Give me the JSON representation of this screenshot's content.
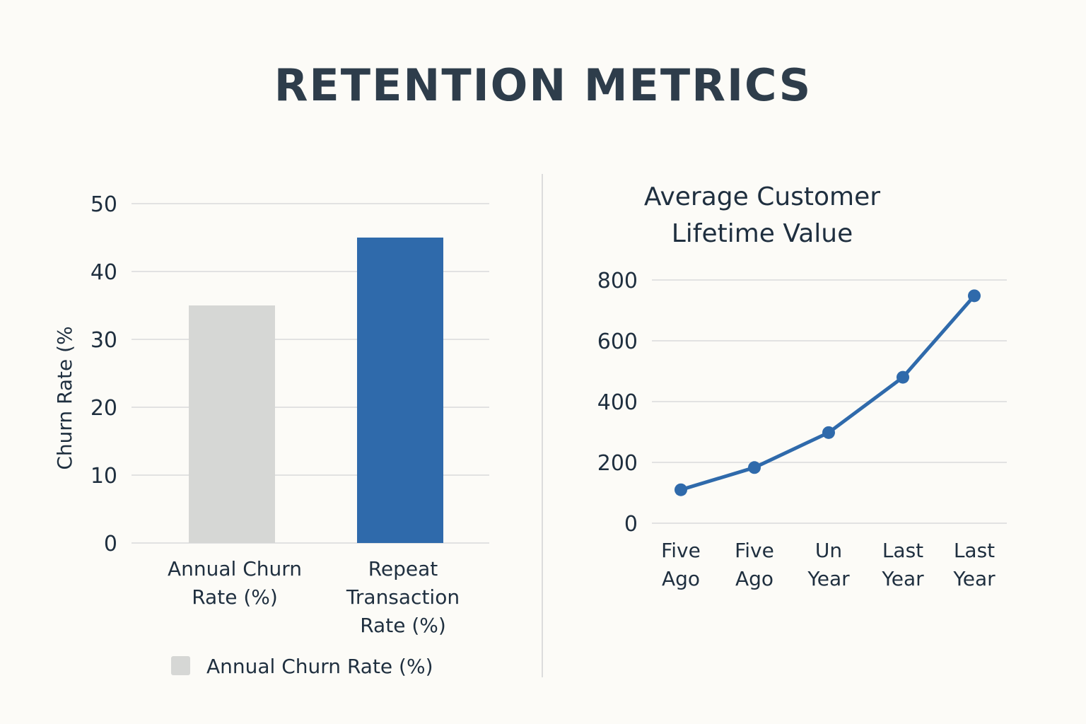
{
  "page": {
    "title": "RETENTION METRICS"
  },
  "colors": {
    "background": "#fcfbf7",
    "title": "#2e3d4b",
    "text": "#1f2f3f",
    "grid": "#e2e2e2",
    "divider": "#dcdcdc",
    "bar_gray": "#d6d7d5",
    "bar_blue": "#2f6aab",
    "line_blue": "#2f6aab"
  },
  "chart_data": [
    {
      "type": "bar",
      "title": "",
      "ylabel": "Churn Rate (%",
      "xlabel": "",
      "ylim": [
        0,
        50
      ],
      "yticks": [
        "0",
        "10",
        "20",
        "30",
        "40",
        "50"
      ],
      "categories": [
        [
          "Annual Churn",
          "Rate (%)"
        ],
        [
          "Repeat",
          "Transaction",
          "Rate (%)"
        ]
      ],
      "values": [
        35,
        45
      ],
      "bar_colors": [
        "#d6d7d5",
        "#2f6aab"
      ],
      "legend": [
        {
          "label": "Annual Churn Rate (%)",
          "color": "#d6d7d5"
        }
      ],
      "legend_position": "bottom-left",
      "grid": true
    },
    {
      "type": "line",
      "title": [
        "Average Customer",
        "Lifetime Value"
      ],
      "ylabel": "",
      "xlabel": "",
      "ylim": [
        0,
        800
      ],
      "yticks": [
        "0",
        "200",
        "400",
        "600",
        "800"
      ],
      "categories": [
        [
          "Five",
          "Ago"
        ],
        [
          "Five",
          "Ago"
        ],
        [
          "Un",
          "Year"
        ],
        [
          "Last",
          "Year"
        ],
        [
          "Last",
          "Year"
        ]
      ],
      "series": [
        {
          "name": "Average Customer Lifetime Value",
          "values": [
            110,
            183,
            298,
            480,
            748
          ]
        }
      ],
      "grid": true
    }
  ]
}
